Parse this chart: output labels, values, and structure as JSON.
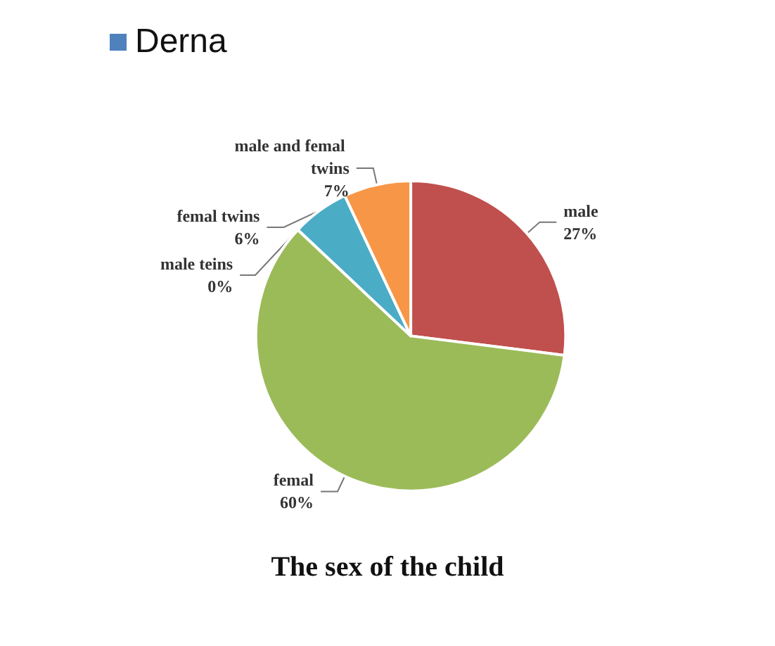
{
  "chart_data": {
    "type": "pie",
    "title": "The sex of the child",
    "legend": "top left",
    "categories": [
      "male",
      "femal",
      "male teins",
      "femal twins",
      "male and femal twins"
    ],
    "series": [
      {
        "name": "Derna",
        "color": "#4f81bd",
        "values": [
          27,
          60,
          0,
          6,
          7
        ],
        "colors": [
          "#c0504d",
          "#9bbb59",
          "#8064a2",
          "#4bacc6",
          "#f79646"
        ]
      }
    ],
    "value_labels": [
      "27%",
      "60%",
      "0%",
      "6%",
      "7%"
    ]
  }
}
